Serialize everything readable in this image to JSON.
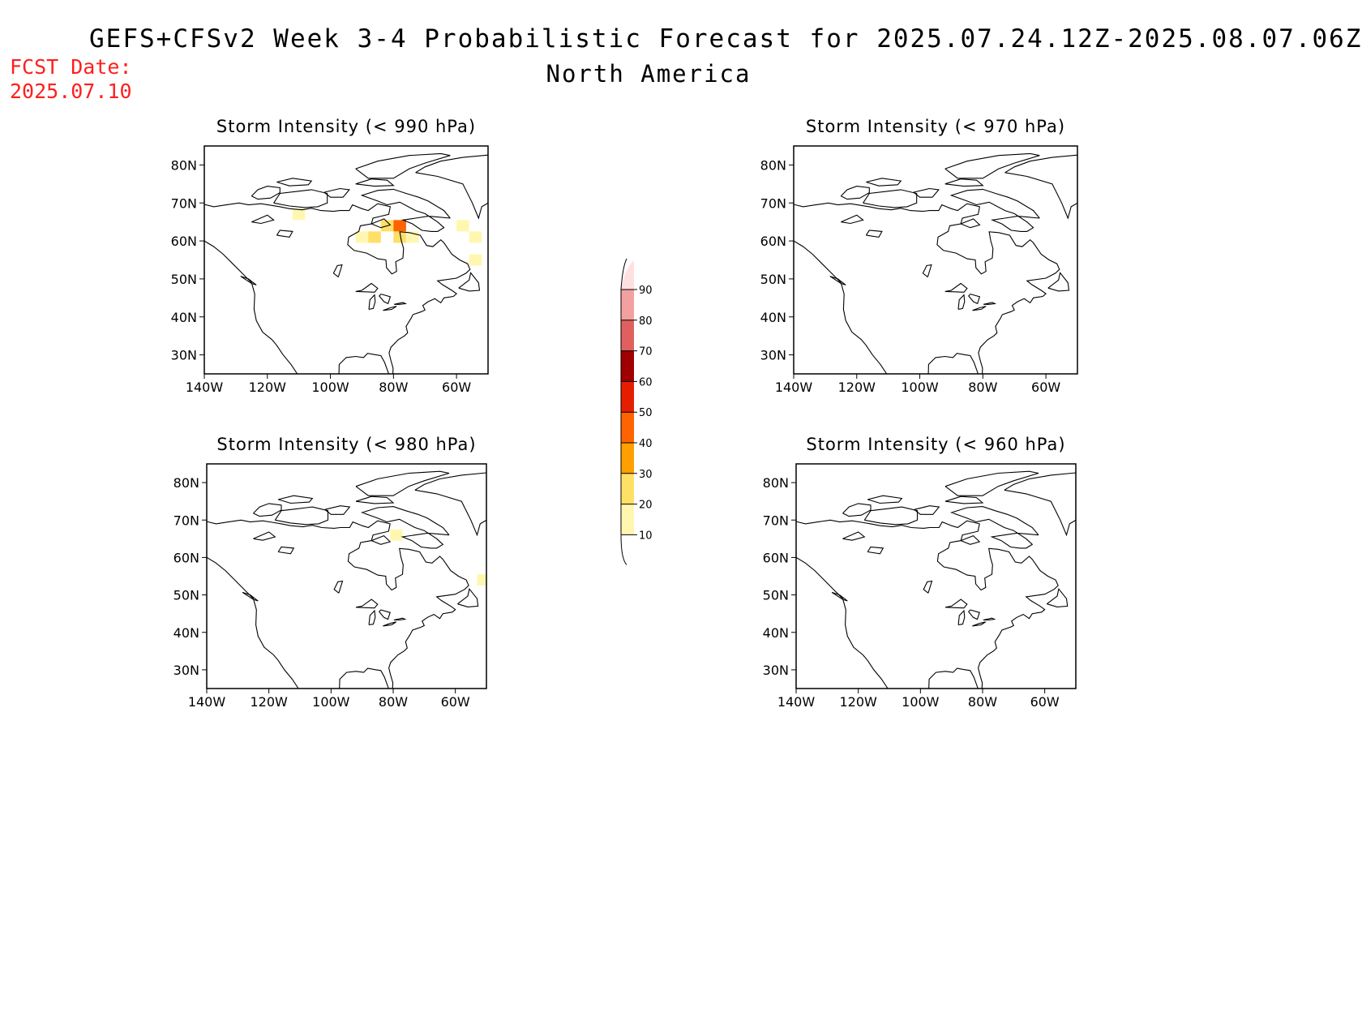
{
  "header": {
    "title": "GEFS+CFSv2 Week 3-4 Probabilistic Forecast for 2025.07.24.12Z-2025.08.07.06Z",
    "subtitle": "North America",
    "fcst_label": "FCST Date:",
    "fcst_date": "2025.07.10"
  },
  "chart_data": [
    {
      "type": "heatmap",
      "title": "Storm Intensity (< 990 hPa)",
      "x_ticks": [
        "140W",
        "120W",
        "100W",
        "80W",
        "60W"
      ],
      "y_ticks": [
        "30N",
        "40N",
        "50N",
        "60N",
        "70N",
        "80N"
      ],
      "xlim": [
        -140,
        -50
      ],
      "ylim": [
        25,
        85
      ],
      "cells": [
        {
          "lon": -90,
          "lat": 61,
          "prob": 15
        },
        {
          "lon": -86,
          "lat": 61,
          "prob": 20
        },
        {
          "lon": -82,
          "lat": 64,
          "prob": 25
        },
        {
          "lon": -78,
          "lat": 64,
          "prob": 40
        },
        {
          "lon": -78,
          "lat": 61,
          "prob": 25
        },
        {
          "lon": -74,
          "lat": 61,
          "prob": 15
        },
        {
          "lon": -110,
          "lat": 67,
          "prob": 10
        },
        {
          "lon": -58,
          "lat": 64,
          "prob": 10
        },
        {
          "lon": -54,
          "lat": 61,
          "prob": 10
        },
        {
          "lon": -54,
          "lat": 55,
          "prob": 10
        }
      ]
    },
    {
      "type": "heatmap",
      "title": "Storm Intensity (< 970 hPa)",
      "x_ticks": [
        "140W",
        "120W",
        "100W",
        "80W",
        "60W"
      ],
      "y_ticks": [
        "30N",
        "40N",
        "50N",
        "60N",
        "70N",
        "80N"
      ],
      "xlim": [
        -140,
        -50
      ],
      "ylim": [
        25,
        85
      ],
      "cells": []
    },
    {
      "type": "heatmap",
      "title": "Storm Intensity (< 980 hPa)",
      "x_ticks": [
        "140W",
        "120W",
        "100W",
        "80W",
        "60W"
      ],
      "y_ticks": [
        "30N",
        "40N",
        "50N",
        "60N",
        "70N",
        "80N"
      ],
      "xlim": [
        -140,
        -50
      ],
      "ylim": [
        25,
        85
      ],
      "cells": [
        {
          "lon": -79,
          "lat": 66,
          "prob": 15
        },
        {
          "lon": -51,
          "lat": 54,
          "prob": 10
        }
      ]
    },
    {
      "type": "heatmap",
      "title": "Storm Intensity (< 960 hPa)",
      "x_ticks": [
        "140W",
        "120W",
        "100W",
        "80W",
        "60W"
      ],
      "y_ticks": [
        "30N",
        "40N",
        "50N",
        "60N",
        "70N",
        "80N"
      ],
      "xlim": [
        -140,
        -50
      ],
      "ylim": [
        25,
        85
      ],
      "cells": []
    }
  ],
  "colorbar": {
    "levels": [
      "10",
      "20",
      "30",
      "40",
      "50",
      "60",
      "70",
      "80",
      "90"
    ],
    "colors": [
      "#fff7b0",
      "#ffe066",
      "#ff9f00",
      "#ff6400",
      "#e61e00",
      "#a00000",
      "#e06060",
      "#f2a0a0",
      "#ffe0e0"
    ]
  }
}
